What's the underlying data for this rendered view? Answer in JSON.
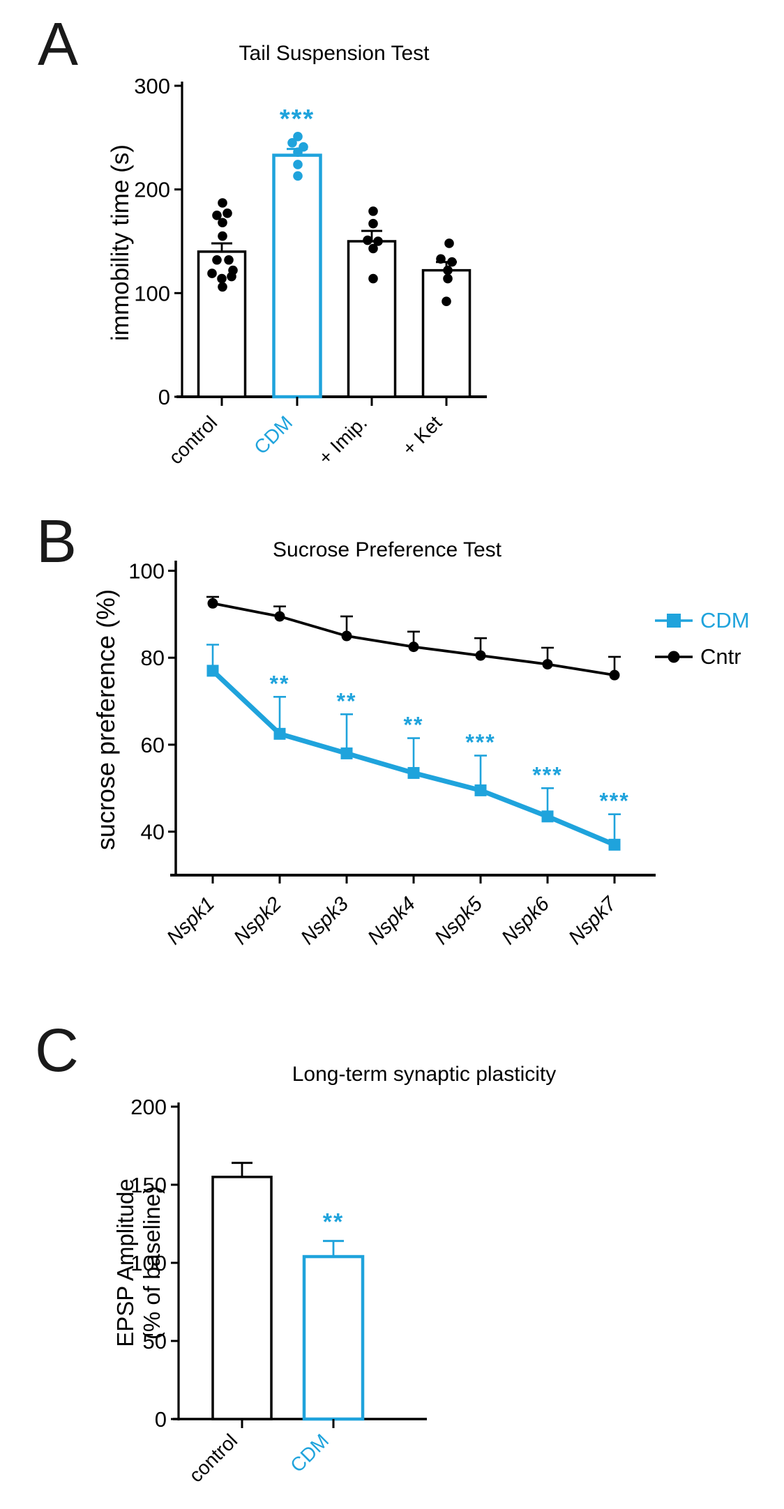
{
  "figure": {
    "colors": {
      "black": "#000000",
      "blue": "#1FA3DC",
      "background": "#ffffff"
    }
  },
  "chart_data": [
    {
      "panel_letter": "A",
      "type": "bar",
      "title": "Tail Suspension Test",
      "ylabel": "immobility time (s)",
      "ylim": [
        0,
        300
      ],
      "ytick_labels": [
        "0",
        "100",
        "200",
        "300"
      ],
      "ytick_values": [
        0,
        100,
        200,
        300
      ],
      "categories": [
        {
          "label": "control",
          "color": "black"
        },
        {
          "label": "CDM",
          "color": "blue"
        },
        {
          "label": "+ Imip.",
          "color": "black"
        },
        {
          "label": "+ Ket",
          "color": "black"
        }
      ],
      "values": [
        140,
        233,
        150,
        122
      ],
      "errors_plus": [
        8,
        6,
        10,
        8
      ],
      "significance": [
        "",
        "***",
        "",
        ""
      ],
      "scatter_points": [
        [
          [
            187,
            1
          ],
          [
            177,
            8
          ],
          [
            175,
            -7
          ],
          [
            168,
            1
          ],
          [
            155,
            1
          ],
          [
            132,
            -7
          ],
          [
            132,
            10
          ],
          [
            122,
            16
          ],
          [
            119,
            -14
          ],
          [
            116,
            14
          ],
          [
            114,
            0
          ],
          [
            106,
            1
          ]
        ],
        [
          [
            251,
            1
          ],
          [
            245,
            -7
          ],
          [
            241,
            9
          ],
          [
            236,
            1
          ],
          [
            224,
            1
          ],
          [
            213,
            1
          ]
        ],
        [
          [
            179,
            2
          ],
          [
            167,
            2
          ],
          [
            151,
            -6
          ],
          [
            150,
            9
          ],
          [
            143,
            2
          ],
          [
            114,
            2
          ]
        ],
        [
          [
            148,
            4
          ],
          [
            133,
            -8
          ],
          [
            130,
            8
          ],
          [
            122,
            2
          ],
          [
            114,
            2
          ],
          [
            92,
            0
          ]
        ]
      ],
      "grid": false,
      "legend": null
    },
    {
      "panel_letter": "B",
      "type": "line",
      "title": "Sucrose Preference Test",
      "ylabel": "sucrose preference (%)",
      "ylim": [
        30,
        100
      ],
      "ytick_labels": [
        "40",
        "60",
        "80",
        "100"
      ],
      "ytick_values": [
        40,
        60,
        80,
        100
      ],
      "categories": [
        "Nspk1",
        "Nspk2",
        "Nspk3",
        "Nspk4",
        "Nspk5",
        "Nspk6",
        "Nspk7"
      ],
      "categories_italic": true,
      "series": [
        {
          "name": "CDM",
          "color": "blue",
          "marker": "square",
          "values": [
            77,
            62.5,
            58,
            53.5,
            49.5,
            43.5,
            37
          ],
          "errors_plus": [
            6,
            8.5,
            9,
            8,
            8,
            6.5,
            7
          ],
          "significance": [
            "",
            "**",
            "**",
            "**",
            "***",
            "***",
            "***"
          ]
        },
        {
          "name": "Cntr",
          "color": "black",
          "marker": "circle",
          "values": [
            92.5,
            89.5,
            85,
            82.5,
            80.5,
            78.5,
            76
          ],
          "errors_plus": [
            1.5,
            2.3,
            4.5,
            3.5,
            4,
            3.8,
            4.2
          ],
          "significance": [
            "",
            "",
            "",
            "",
            "",
            "",
            ""
          ]
        }
      ],
      "legend": {
        "position": "right"
      },
      "grid": false
    },
    {
      "panel_letter": "C",
      "type": "bar",
      "title": "Long-term synaptic plasticity",
      "ylabel_line1": "EPSP Amplitude",
      "ylabel_line2": "(% of baseline)",
      "ylim": [
        0,
        200
      ],
      "ytick_labels": [
        "0",
        "50",
        "100",
        "150",
        "200"
      ],
      "ytick_values": [
        0,
        50,
        100,
        150,
        200
      ],
      "categories": [
        {
          "label": "control",
          "color": "black"
        },
        {
          "label": "CDM",
          "color": "blue"
        }
      ],
      "values": [
        155,
        104
      ],
      "errors_plus": [
        9,
        10
      ],
      "significance": [
        "",
        "**"
      ],
      "scatter_points": null,
      "grid": false,
      "legend": null
    }
  ]
}
